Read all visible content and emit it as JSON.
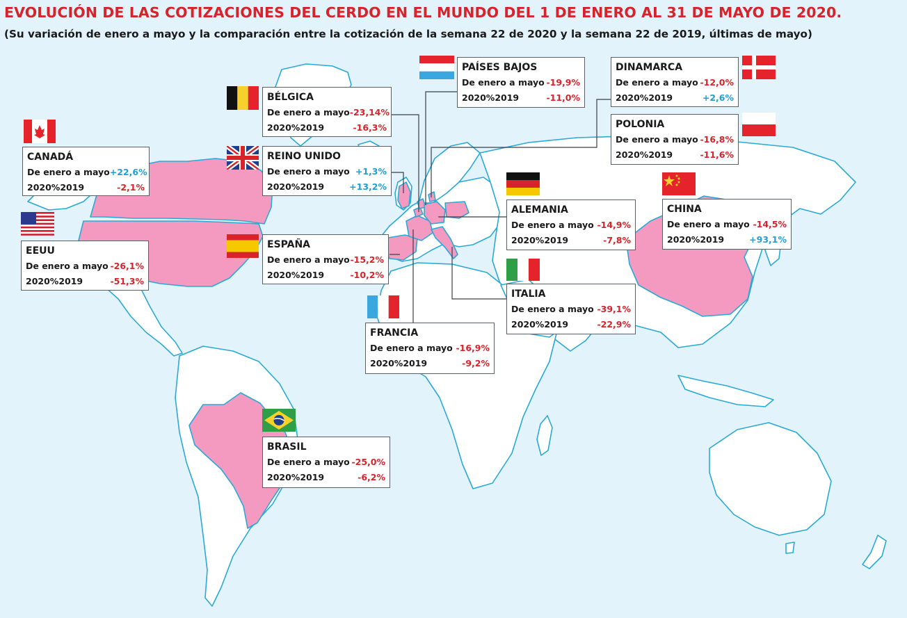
{
  "title": "EVOLUCIÓN DE LAS COTIZACIONES DEL CERDO EN EL MUNDO DEL 1 DE ENERO AL 31 DE MAYO DE 2020.",
  "subtitle": "(Su variación de enero a mayo y la comparación entre la cotización de la semana 22 de 2020 y la semana 22 de 2019, últimas de mayo)",
  "colors": {
    "background": "#e3f3fb",
    "land": "#ffffff",
    "land_border": "#29a9d6",
    "highlight": "#f49ac1",
    "title": "#d7232a",
    "negative": "#d7232a",
    "positive": "#1f9fd6"
  },
  "row_labels": {
    "period": "De enero a mayo",
    "yoy": "2020%2019"
  },
  "countries": [
    {
      "id": "canada",
      "name": "CANADÁ",
      "period": "+22,6%",
      "yoy": "-2,1%",
      "period_sign": "pos",
      "yoy_sign": "neg",
      "flag": "canada-flag"
    },
    {
      "id": "eeuu",
      "name": "EEUU",
      "period": "-26,1%",
      "yoy": "-51,3%",
      "period_sign": "neg",
      "yoy_sign": "neg",
      "flag": "usa-flag"
    },
    {
      "id": "belgica",
      "name": "BÉLGICA",
      "period": "-23,14%",
      "yoy": "-16,3%",
      "period_sign": "neg",
      "yoy_sign": "neg",
      "flag": "belgium-flag"
    },
    {
      "id": "reino-unido",
      "name": "REINO UNIDO",
      "period": "+1,3%",
      "yoy": "+13,2%",
      "period_sign": "pos",
      "yoy_sign": "pos",
      "flag": "uk-flag"
    },
    {
      "id": "espana",
      "name": "ESPAÑA",
      "period": "-15,2%",
      "yoy": "-10,2%",
      "period_sign": "neg",
      "yoy_sign": "neg",
      "flag": "spain-flag"
    },
    {
      "id": "paises-bajos",
      "name": "PAÍSES BAJOS",
      "period": "-19,9%",
      "yoy": "-11,0%",
      "period_sign": "neg",
      "yoy_sign": "neg",
      "flag": "netherlands-flag"
    },
    {
      "id": "dinamarca",
      "name": "DINAMARCA",
      "period": "-12,0%",
      "yoy": "+2,6%",
      "period_sign": "neg",
      "yoy_sign": "pos",
      "flag": "denmark-flag"
    },
    {
      "id": "polonia",
      "name": "POLONIA",
      "period": "-16,8%",
      "yoy": "-11,6%",
      "period_sign": "neg",
      "yoy_sign": "neg",
      "flag": "poland-flag"
    },
    {
      "id": "alemania",
      "name": "ALEMANIA",
      "period": "-14,9%",
      "yoy": "-7,8%",
      "period_sign": "neg",
      "yoy_sign": "neg",
      "flag": "germany-flag"
    },
    {
      "id": "china",
      "name": "CHINA",
      "period": "-14,5%",
      "yoy": "+93,1%",
      "period_sign": "neg",
      "yoy_sign": "pos",
      "flag": "china-flag"
    },
    {
      "id": "italia",
      "name": "ITALIA",
      "period": "-39,1%",
      "yoy": "-22,9%",
      "period_sign": "neg",
      "yoy_sign": "neg",
      "flag": "italy-flag"
    },
    {
      "id": "francia",
      "name": "FRANCIA",
      "period": "-16,9%",
      "yoy": "-9,2%",
      "period_sign": "neg",
      "yoy_sign": "neg",
      "flag": "france-flag"
    },
    {
      "id": "brasil",
      "name": "BRASIL",
      "period": "-25,0%",
      "yoy": "-6,2%",
      "period_sign": "neg",
      "yoy_sign": "neg",
      "flag": "brazil-flag"
    }
  ]
}
